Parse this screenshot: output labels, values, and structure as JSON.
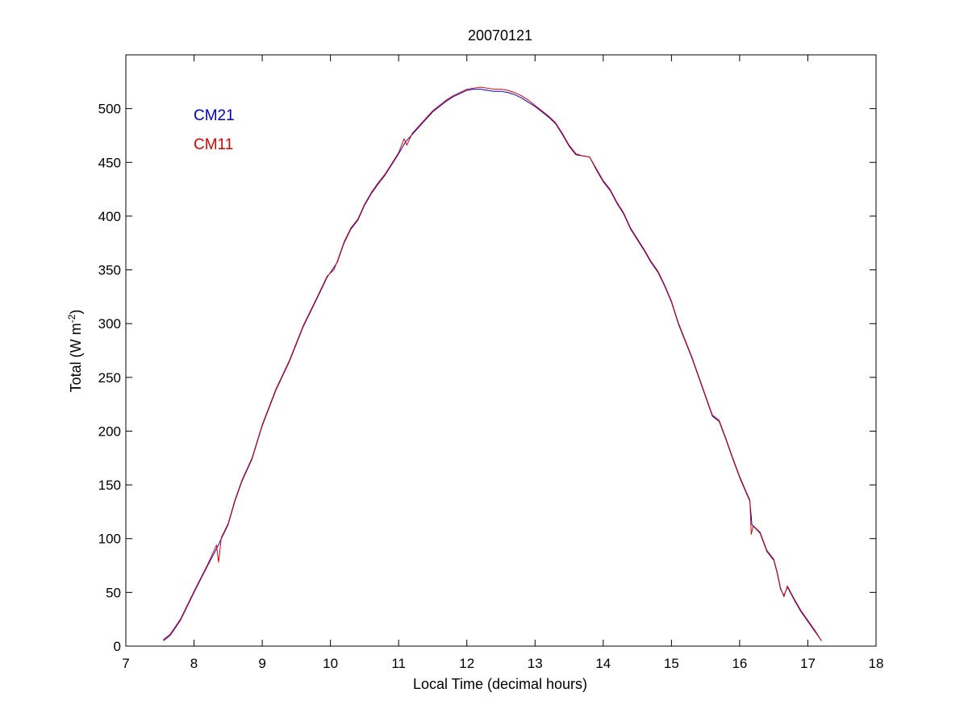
{
  "chart_data": {
    "type": "line",
    "title": "20070121",
    "xlabel": "Local Time (decimal hours)",
    "ylabel": {
      "prefix": "Total (W m",
      "exponent": "-2",
      "suffix": ")"
    },
    "xlim": [
      7,
      18
    ],
    "ylim": [
      0,
      550
    ],
    "x_ticks": [
      7,
      8,
      9,
      10,
      11,
      12,
      13,
      14,
      15,
      16,
      17,
      18
    ],
    "y_ticks": [
      0,
      50,
      100,
      150,
      200,
      250,
      300,
      350,
      400,
      450,
      500
    ],
    "grid": false,
    "legend_position": "top-left",
    "series": [
      {
        "name": "CM21",
        "color": "#0000cc",
        "points": [
          [
            7.55,
            5
          ],
          [
            7.65,
            10
          ],
          [
            7.8,
            24
          ],
          [
            8.0,
            50
          ],
          [
            8.2,
            75
          ],
          [
            8.35,
            93
          ],
          [
            8.4,
            100
          ],
          [
            8.5,
            113
          ],
          [
            8.6,
            135
          ],
          [
            8.7,
            153
          ],
          [
            8.85,
            174
          ],
          [
            9.0,
            205
          ],
          [
            9.2,
            238
          ],
          [
            9.4,
            265
          ],
          [
            9.6,
            297
          ],
          [
            9.8,
            323
          ],
          [
            9.95,
            343
          ],
          [
            10.1,
            357
          ],
          [
            10.2,
            375
          ],
          [
            10.3,
            388
          ],
          [
            10.4,
            396
          ],
          [
            10.5,
            410
          ],
          [
            10.6,
            421
          ],
          [
            10.7,
            430
          ],
          [
            10.8,
            438
          ],
          [
            10.9,
            448
          ],
          [
            11.0,
            458
          ],
          [
            11.1,
            469
          ],
          [
            11.2,
            476
          ],
          [
            11.3,
            483
          ],
          [
            11.4,
            490
          ],
          [
            11.5,
            497
          ],
          [
            11.6,
            502
          ],
          [
            11.7,
            507
          ],
          [
            11.8,
            511
          ],
          [
            11.9,
            514
          ],
          [
            12.0,
            517
          ],
          [
            12.1,
            518
          ],
          [
            12.2,
            518
          ],
          [
            12.3,
            517
          ],
          [
            12.4,
            516
          ],
          [
            12.5,
            516
          ],
          [
            12.6,
            515
          ],
          [
            12.7,
            513
          ],
          [
            12.8,
            510
          ],
          [
            12.9,
            506
          ],
          [
            13.0,
            502
          ],
          [
            13.1,
            497
          ],
          [
            13.2,
            492
          ],
          [
            13.3,
            486
          ],
          [
            13.4,
            476
          ],
          [
            13.5,
            465
          ],
          [
            13.6,
            457
          ],
          [
            13.7,
            456
          ],
          [
            13.8,
            455
          ],
          [
            13.9,
            443
          ],
          [
            14.0,
            432
          ],
          [
            14.1,
            424
          ],
          [
            14.2,
            412
          ],
          [
            14.3,
            402
          ],
          [
            14.4,
            388
          ],
          [
            14.5,
            378
          ],
          [
            14.6,
            368
          ],
          [
            14.7,
            357
          ],
          [
            14.8,
            348
          ],
          [
            14.9,
            335
          ],
          [
            15.0,
            320
          ],
          [
            15.1,
            300
          ],
          [
            15.2,
            284
          ],
          [
            15.3,
            268
          ],
          [
            15.4,
            250
          ],
          [
            15.5,
            232
          ],
          [
            15.6,
            214
          ],
          [
            15.7,
            209
          ],
          [
            15.8,
            192
          ],
          [
            15.9,
            174
          ],
          [
            16.0,
            157
          ],
          [
            16.1,
            142
          ],
          [
            16.15,
            135
          ],
          [
            16.18,
            113
          ],
          [
            16.3,
            105
          ],
          [
            16.4,
            88
          ],
          [
            16.5,
            80
          ],
          [
            16.55,
            68
          ],
          [
            16.6,
            53
          ],
          [
            16.65,
            47
          ],
          [
            16.7,
            55
          ],
          [
            16.8,
            43
          ],
          [
            16.9,
            32
          ],
          [
            17.0,
            23
          ],
          [
            17.1,
            14
          ],
          [
            17.2,
            5
          ]
        ]
      },
      {
        "name": "CM11",
        "color": "#dd0000",
        "points": [
          [
            7.55,
            6
          ],
          [
            7.65,
            11
          ],
          [
            7.8,
            25
          ],
          [
            8.0,
            51
          ],
          [
            8.2,
            76
          ],
          [
            8.33,
            94
          ],
          [
            8.36,
            78
          ],
          [
            8.4,
            101
          ],
          [
            8.5,
            114
          ],
          [
            8.6,
            136
          ],
          [
            8.7,
            154
          ],
          [
            8.85,
            175
          ],
          [
            9.0,
            206
          ],
          [
            9.2,
            239
          ],
          [
            9.4,
            266
          ],
          [
            9.6,
            298
          ],
          [
            9.8,
            324
          ],
          [
            9.95,
            344
          ],
          [
            10.05,
            350
          ],
          [
            10.1,
            358
          ],
          [
            10.2,
            376
          ],
          [
            10.3,
            389
          ],
          [
            10.4,
            397
          ],
          [
            10.5,
            411
          ],
          [
            10.6,
            422
          ],
          [
            10.7,
            431
          ],
          [
            10.8,
            439
          ],
          [
            10.9,
            449
          ],
          [
            11.0,
            459
          ],
          [
            11.08,
            472
          ],
          [
            11.12,
            466
          ],
          [
            11.2,
            477
          ],
          [
            11.3,
            484
          ],
          [
            11.4,
            491
          ],
          [
            11.5,
            498
          ],
          [
            11.6,
            503
          ],
          [
            11.7,
            508
          ],
          [
            11.8,
            512
          ],
          [
            11.9,
            515
          ],
          [
            12.0,
            518
          ],
          [
            12.1,
            519
          ],
          [
            12.2,
            520
          ],
          [
            12.3,
            519
          ],
          [
            12.4,
            518
          ],
          [
            12.5,
            518
          ],
          [
            12.6,
            517
          ],
          [
            12.7,
            515
          ],
          [
            12.8,
            512
          ],
          [
            12.9,
            508
          ],
          [
            13.0,
            503
          ],
          [
            13.1,
            498
          ],
          [
            13.2,
            493
          ],
          [
            13.3,
            487
          ],
          [
            13.4,
            477
          ],
          [
            13.5,
            466
          ],
          [
            13.6,
            458
          ],
          [
            13.7,
            456
          ],
          [
            13.8,
            455
          ],
          [
            13.9,
            444
          ],
          [
            14.0,
            433
          ],
          [
            14.1,
            425
          ],
          [
            14.2,
            413
          ],
          [
            14.3,
            403
          ],
          [
            14.4,
            389
          ],
          [
            14.5,
            379
          ],
          [
            14.6,
            369
          ],
          [
            14.7,
            358
          ],
          [
            14.8,
            349
          ],
          [
            14.9,
            336
          ],
          [
            15.0,
            321
          ],
          [
            15.1,
            301
          ],
          [
            15.2,
            285
          ],
          [
            15.3,
            269
          ],
          [
            15.4,
            251
          ],
          [
            15.5,
            233
          ],
          [
            15.6,
            215
          ],
          [
            15.7,
            210
          ],
          [
            15.8,
            193
          ],
          [
            15.9,
            175
          ],
          [
            16.0,
            158
          ],
          [
            16.1,
            143
          ],
          [
            16.15,
            136
          ],
          [
            16.17,
            104
          ],
          [
            16.2,
            112
          ],
          [
            16.3,
            106
          ],
          [
            16.4,
            89
          ],
          [
            16.5,
            81
          ],
          [
            16.55,
            69
          ],
          [
            16.6,
            54
          ],
          [
            16.65,
            46
          ],
          [
            16.7,
            56
          ],
          [
            16.8,
            44
          ],
          [
            16.9,
            33
          ],
          [
            17.0,
            24
          ],
          [
            17.1,
            15
          ],
          [
            17.2,
            5
          ]
        ]
      }
    ]
  }
}
